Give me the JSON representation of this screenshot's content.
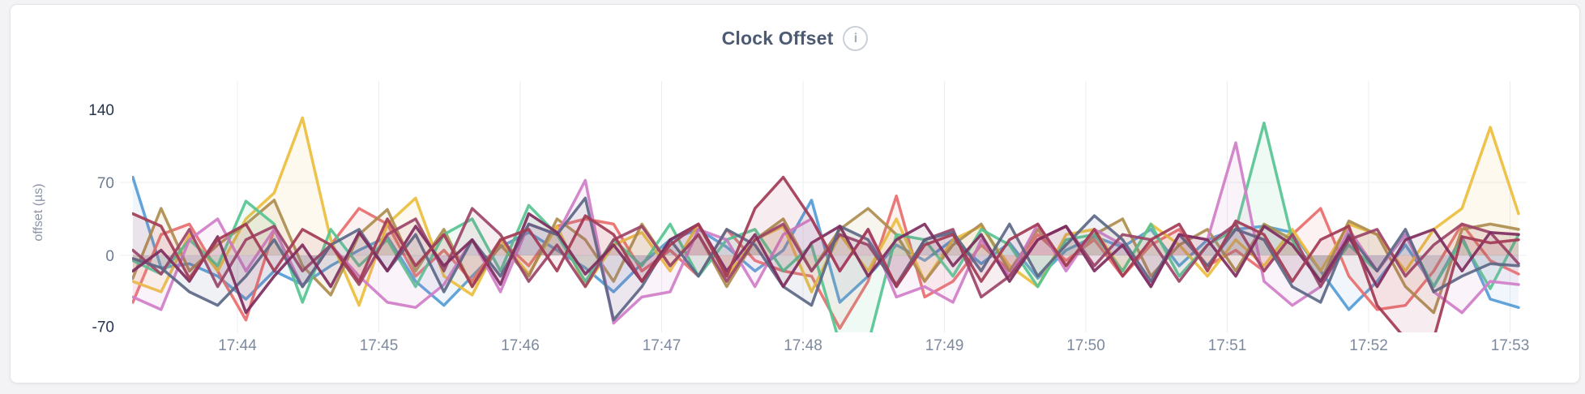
{
  "card": {
    "title": "Clock Offset",
    "info_icon": "i"
  },
  "chart_data": {
    "type": "line",
    "title": "Clock Offset",
    "xlabel": "",
    "ylabel": "offset (µs)",
    "x_tick_labels": [
      "17:44",
      "17:45",
      "17:46",
      "17:47",
      "17:48",
      "17:49",
      "17:50",
      "17:51",
      "17:52",
      "17:53"
    ],
    "y_tick_values": [
      140,
      70,
      0,
      -70
    ],
    "y_gridline_values": [
      70,
      0
    ],
    "ylim": [
      -74,
      157
    ],
    "x_unit": "minutes relative to 17:44",
    "x_start": -0.74,
    "x_step": 0.2,
    "points_per_series": 50,
    "legend_position": "none",
    "grid": "on",
    "axis_text_color": "#7d8a9e",
    "axis_text_strong_color": "#26334d",
    "gridline_color": "#ededf0",
    "series": [
      {
        "name": "series-1-blue",
        "color": "#559CD6",
        "values": [
          75,
          -12,
          -8,
          -20,
          -42,
          -15,
          -28,
          -10,
          5,
          18,
          -25,
          -48,
          -20,
          8,
          22,
          5,
          -12,
          -35,
          -8,
          15,
          25,
          8,
          -15,
          5,
          53,
          -45,
          -20,
          10,
          -5,
          15,
          -8,
          12,
          -22,
          5,
          18,
          8,
          25,
          -10,
          15,
          25,
          28,
          22,
          -15,
          -52,
          -25,
          10,
          -30,
          18,
          -42,
          -50
        ]
      },
      {
        "name": "series-2-salmon",
        "color": "#E96C6C",
        "values": [
          -45,
          20,
          30,
          -15,
          -62,
          25,
          -30,
          10,
          45,
          30,
          -20,
          5,
          -25,
          15,
          -10,
          28,
          35,
          30,
          -15,
          5,
          -20,
          25,
          -5,
          -15,
          -20,
          -70,
          -25,
          57,
          -40,
          -25,
          10,
          -15,
          20,
          -5,
          15,
          -20,
          10,
          25,
          -10,
          5,
          -15,
          20,
          45,
          -20,
          -52,
          -48,
          -15,
          30,
          -5,
          -18
        ]
      },
      {
        "name": "series-3-gold",
        "color": "#EDBE3D",
        "values": [
          -25,
          -35,
          20,
          -15,
          35,
          60,
          132,
          15,
          -48,
          30,
          55,
          -20,
          -38,
          15,
          -18,
          28,
          -30,
          10,
          22,
          -15,
          30,
          -20,
          15,
          28,
          -35,
          20,
          -15,
          35,
          -25,
          15,
          28,
          -10,
          -30,
          20,
          25,
          -15,
          30,
          10,
          -20,
          15,
          -10,
          25,
          -15,
          30,
          20,
          -15,
          25,
          45,
          123,
          40
        ]
      },
      {
        "name": "series-4-olive",
        "color": "#AE8D4F",
        "values": [
          -22,
          45,
          -15,
          10,
          30,
          53,
          -10,
          -38,
          20,
          44,
          -15,
          25,
          -30,
          10,
          -20,
          35,
          15,
          -25,
          30,
          -10,
          20,
          -30,
          15,
          35,
          -15,
          25,
          45,
          20,
          -25,
          10,
          30,
          -15,
          25,
          -10,
          20,
          35,
          -20,
          10,
          25,
          -15,
          30,
          15,
          -25,
          33,
          20,
          -30,
          -55,
          25,
          30,
          25
        ]
      },
      {
        "name": "series-5-mint",
        "color": "#57C491",
        "values": [
          -5,
          -18,
          15,
          -10,
          52,
          30,
          -45,
          25,
          -10,
          15,
          -30,
          20,
          35,
          -15,
          48,
          20,
          -25,
          15,
          -10,
          30,
          -20,
          15,
          25,
          -15,
          10,
          -85,
          -85,
          20,
          15,
          -20,
          25,
          10,
          -30,
          15,
          20,
          -15,
          30,
          -20,
          10,
          25,
          127,
          15,
          -25,
          10,
          -15,
          20,
          -30,
          15,
          -32,
          20
        ]
      },
      {
        "name": "series-6-orchid",
        "color": "#D07EC8",
        "values": [
          -40,
          -52,
          15,
          35,
          -15,
          25,
          -30,
          10,
          -20,
          -45,
          -50,
          -28,
          15,
          -35,
          30,
          20,
          72,
          -65,
          -40,
          -35,
          25,
          15,
          -30,
          20,
          35,
          -15,
          25,
          -40,
          -30,
          -45,
          15,
          -20,
          30,
          -15,
          25,
          10,
          -30,
          20,
          15,
          108,
          -25,
          -48,
          -30,
          25,
          -15,
          20,
          -35,
          -55,
          -25,
          -28
        ]
      },
      {
        "name": "series-7-wine",
        "color": "#9C4468",
        "values": [
          5,
          -18,
          25,
          -30,
          15,
          28,
          -15,
          10,
          -28,
          20,
          35,
          -15,
          45,
          20,
          -25,
          10,
          -30,
          15,
          28,
          -10,
          20,
          -25,
          15,
          30,
          -15,
          20,
          10,
          -28,
          15,
          25,
          -40,
          -20,
          15,
          28,
          -10,
          20,
          15,
          -25,
          10,
          30,
          -15,
          20,
          -30,
          15,
          25,
          -20,
          10,
          30,
          22,
          -8
        ]
      },
      {
        "name": "series-8-slate",
        "color": "#5C6887",
        "values": [
          -3,
          -12,
          -35,
          -48,
          -20,
          15,
          -30,
          10,
          25,
          -15,
          20,
          -35,
          15,
          -20,
          30,
          20,
          55,
          -62,
          -30,
          15,
          -20,
          25,
          10,
          -30,
          -48,
          28,
          15,
          -30,
          15,
          22,
          -15,
          30,
          -20,
          10,
          38,
          15,
          -25,
          20,
          -10,
          25,
          15,
          -30,
          -45,
          20,
          -15,
          25,
          -35,
          -20,
          -8,
          -10
        ]
      },
      {
        "name": "series-9-plum",
        "color": "#7E2D5E",
        "values": [
          -15,
          5,
          -25,
          18,
          -55,
          -20,
          10,
          -30,
          22,
          -15,
          28,
          -10,
          15,
          -28,
          40,
          22,
          -18,
          10,
          -25,
          15,
          30,
          -15,
          20,
          -30,
          12,
          28,
          -20,
          15,
          30,
          -10,
          20,
          -25,
          15,
          28,
          -15,
          10,
          -30,
          20,
          15,
          -20,
          28,
          10,
          -25,
          18,
          -30,
          15,
          25,
          -15,
          22,
          20
        ]
      },
      {
        "name": "series-10-maroon",
        "color": "#A23B55",
        "values": [
          40,
          28,
          -22,
          15,
          30,
          -15,
          25,
          10,
          -25,
          35,
          -10,
          20,
          -30,
          15,
          25,
          -15,
          38,
          20,
          -25,
          10,
          30,
          -20,
          45,
          75,
          35,
          -15,
          25,
          -30,
          10,
          20,
          -25,
          15,
          30,
          -10,
          25,
          -20,
          15,
          30,
          -15,
          33,
          20,
          -25,
          15,
          28,
          -48,
          -80,
          -80,
          18,
          12,
          15
        ]
      }
    ]
  }
}
